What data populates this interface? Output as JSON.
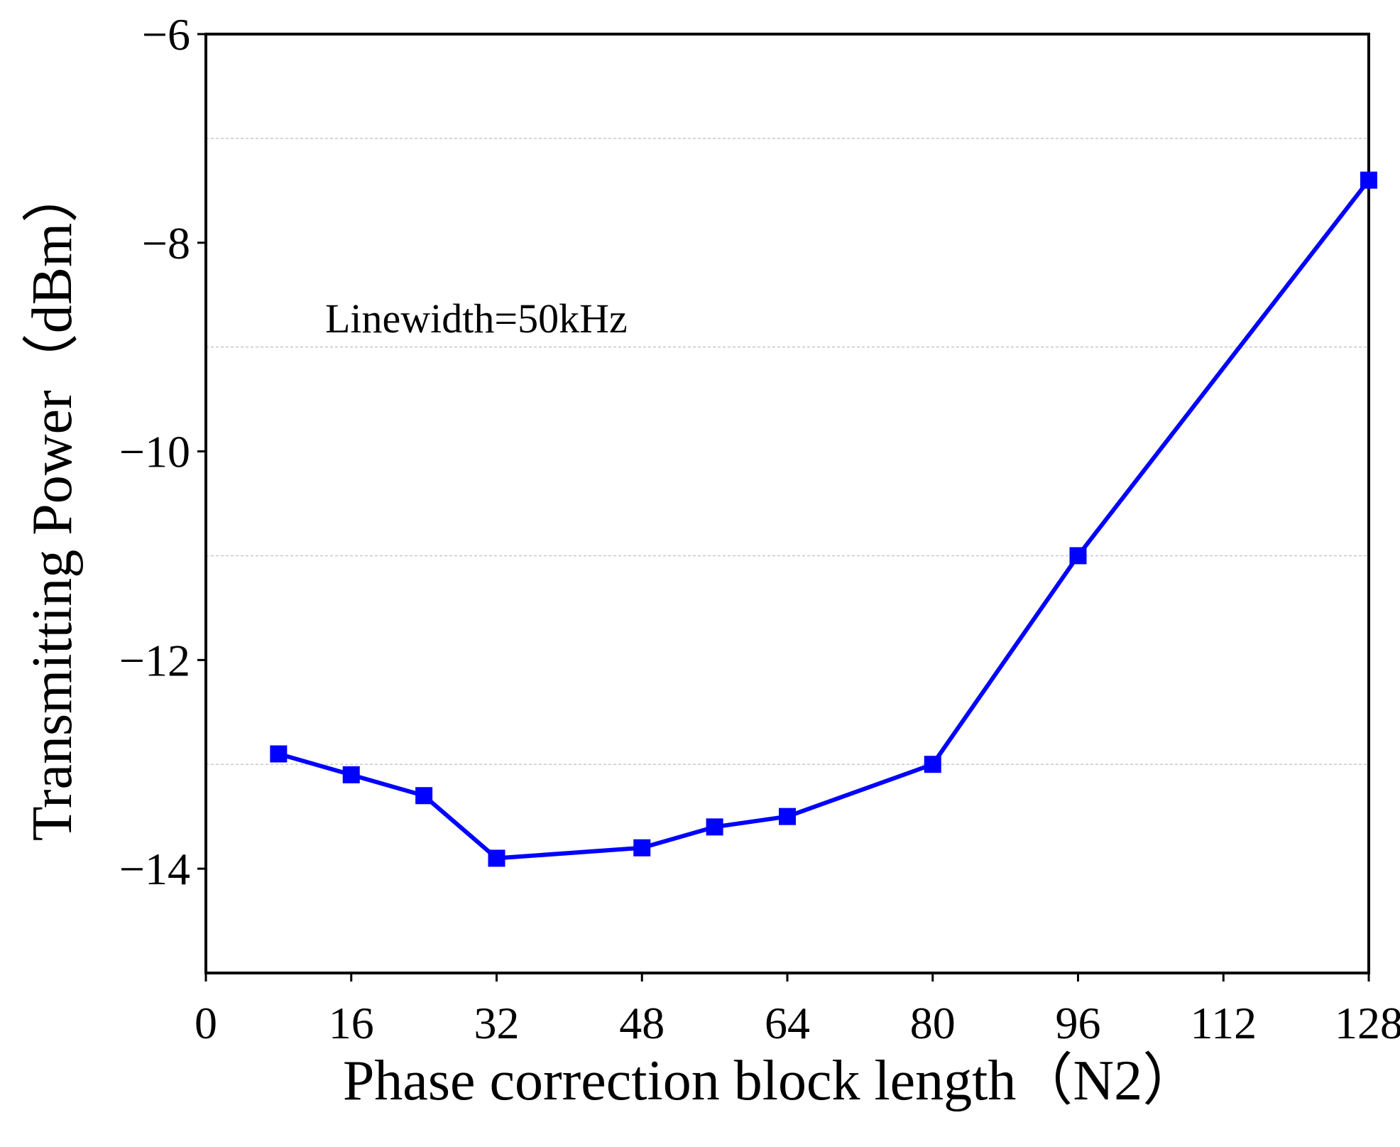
{
  "chart_data": {
    "type": "line",
    "title": "",
    "xlabel": "Phase correction block length（N2）",
    "ylabel": "Transmitting Power（dBm）",
    "xlim": [
      0,
      128
    ],
    "ylim": [
      -15,
      -6
    ],
    "xticks": [
      0,
      16,
      32,
      48,
      64,
      80,
      96,
      112,
      128
    ],
    "xtick_labels": [
      "0",
      "16",
      "32",
      "48",
      "64",
      "80",
      "96",
      "112",
      "128"
    ],
    "yticks": [
      -14,
      -12,
      -10,
      -8,
      -6
    ],
    "ytick_labels": [
      "−14",
      "−12",
      "−10",
      "−8",
      "−6"
    ],
    "grid_y": [
      -13,
      -11,
      -9,
      -7
    ],
    "grid": true,
    "annotation": "Linewidth=50kHz",
    "series": [
      {
        "name": "Linewidth=50kHz",
        "color": "#0000ff",
        "marker": "square",
        "x": [
          8,
          16,
          24,
          32,
          48,
          56,
          64,
          80,
          96,
          128
        ],
        "y": [
          -12.9,
          -13.1,
          -13.3,
          -13.9,
          -13.8,
          -13.6,
          -13.5,
          -13.0,
          -11.0,
          -7.4
        ]
      }
    ]
  }
}
